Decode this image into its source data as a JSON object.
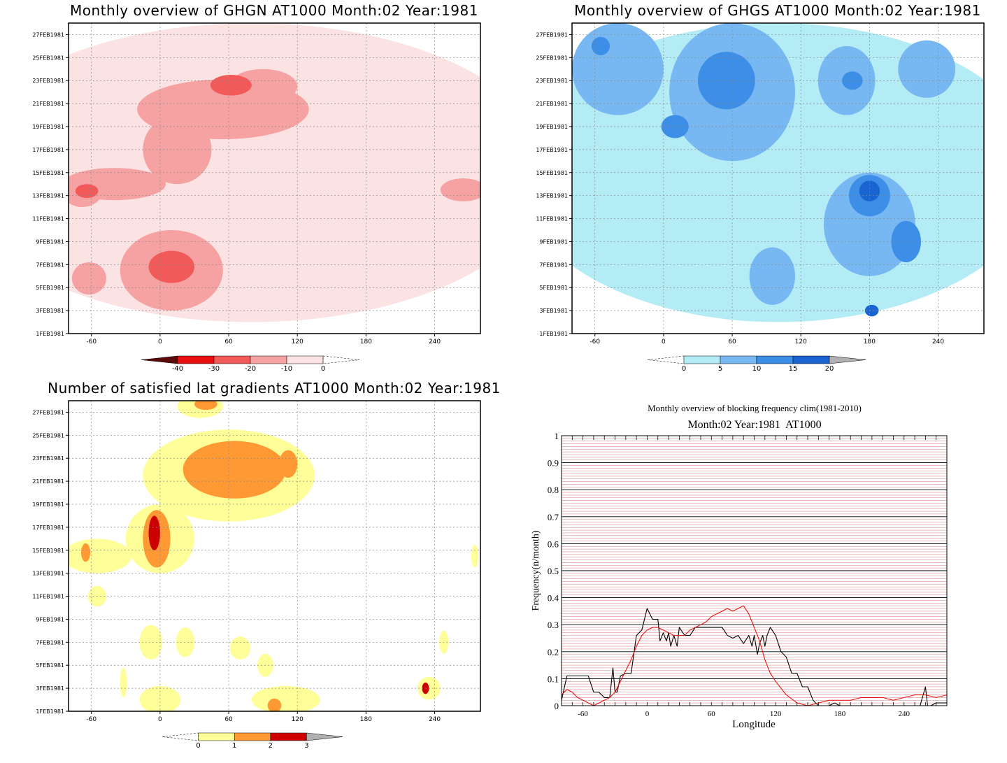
{
  "chart_data": [
    {
      "type": "heatmap",
      "title": "Monthly overview of GHGN AT1000 Month:02 Year:1981",
      "x_ticks": [
        -60,
        0,
        60,
        120,
        180,
        240
      ],
      "xlim": [
        -80,
        280
      ],
      "y_ticks": [
        "1FEB1981",
        "3FEB1981",
        "5FEB1981",
        "7FEB1981",
        "9FEB1981",
        "11FEB1981",
        "13FEB1981",
        "15FEB1981",
        "17FEB1981",
        "19FEB1981",
        "21FEB1981",
        "23FEB1981",
        "25FEB1981",
        "27FEB1981"
      ],
      "ylim": [
        1,
        28
      ],
      "colorbar": {
        "labels": [
          "-40",
          "-30",
          "-20",
          "-10",
          "0"
        ],
        "colors": [
          "#5a0a0a",
          "#e81010",
          "#f25a5a",
          "#f6a2a2",
          "#fbe3e3"
        ]
      },
      "blobs": [
        {
          "level": 1,
          "x": 80,
          "y": 15,
          "rx": 260,
          "ry": 13
        },
        {
          "level": 2,
          "x": 55,
          "y": 20.5,
          "rx": 75,
          "ry": 2.6
        },
        {
          "level": 2,
          "x": 15,
          "y": 17,
          "rx": 30,
          "ry": 3
        },
        {
          "level": 2,
          "x": -40,
          "y": 14,
          "rx": 45,
          "ry": 1.4
        },
        {
          "level": 2,
          "x": 90,
          "y": 22.5,
          "rx": 30,
          "ry": 1.5
        },
        {
          "level": 2,
          "x": 10,
          "y": 6.5,
          "rx": 45,
          "ry": 3.5
        },
        {
          "level": 2,
          "x": -62,
          "y": 5.8,
          "rx": 15,
          "ry": 1.4
        },
        {
          "level": 2,
          "x": 265,
          "y": 13.5,
          "rx": 20,
          "ry": 1
        },
        {
          "level": 2,
          "x": -68,
          "y": 13.5,
          "rx": 18,
          "ry": 1.5
        },
        {
          "level": 3,
          "x": 10,
          "y": 6.8,
          "rx": 20,
          "ry": 1.4
        },
        {
          "level": 3,
          "x": 62,
          "y": 22.6,
          "rx": 18,
          "ry": 0.9
        },
        {
          "level": 3,
          "x": -64,
          "y": 13.4,
          "rx": 10,
          "ry": 0.6
        }
      ]
    },
    {
      "type": "heatmap",
      "title": "Monthly overview of GHGS AT1000 Month:02 Year:1981",
      "x_ticks": [
        -60,
        0,
        60,
        120,
        180,
        240
      ],
      "xlim": [
        -80,
        280
      ],
      "y_ticks": [
        "1FEB1981",
        "3FEB1981",
        "5FEB1981",
        "7FEB1981",
        "9FEB1981",
        "11FEB1981",
        "13FEB1981",
        "15FEB1981",
        "17FEB1981",
        "19FEB1981",
        "21FEB1981",
        "23FEB1981",
        "25FEB1981",
        "27FEB1981"
      ],
      "ylim": [
        1,
        28
      ],
      "colorbar": {
        "labels": [
          "0",
          "5",
          "10",
          "15",
          "20"
        ],
        "colors": [
          "#b4ecf6",
          "#78b8f2",
          "#3c8ee6",
          "#1a64d0",
          "#b0b0b0"
        ]
      },
      "blobs": [
        {
          "level": 1,
          "x": 100,
          "y": 15,
          "rx": 230,
          "ry": 13
        },
        {
          "level": 2,
          "x": 60,
          "y": 22,
          "rx": 55,
          "ry": 6
        },
        {
          "level": 2,
          "x": -40,
          "y": 24,
          "rx": 40,
          "ry": 4
        },
        {
          "level": 2,
          "x": 180,
          "y": 10.5,
          "rx": 40,
          "ry": 4.5
        },
        {
          "level": 2,
          "x": 160,
          "y": 23,
          "rx": 25,
          "ry": 3
        },
        {
          "level": 2,
          "x": 230,
          "y": 24,
          "rx": 25,
          "ry": 2.5
        },
        {
          "level": 2,
          "x": 95,
          "y": 6,
          "rx": 20,
          "ry": 2.5
        },
        {
          "level": 3,
          "x": 55,
          "y": 23,
          "rx": 25,
          "ry": 2.5
        },
        {
          "level": 3,
          "x": 180,
          "y": 13,
          "rx": 18,
          "ry": 1.8
        },
        {
          "level": 3,
          "x": 212,
          "y": 9,
          "rx": 13,
          "ry": 1.8
        },
        {
          "level": 3,
          "x": 10,
          "y": 19,
          "rx": 12,
          "ry": 1
        },
        {
          "level": 3,
          "x": -55,
          "y": 26,
          "rx": 8,
          "ry": 0.8
        },
        {
          "level": 3,
          "x": 165,
          "y": 23,
          "rx": 9,
          "ry": 0.8
        },
        {
          "level": 4,
          "x": 180,
          "y": 13.4,
          "rx": 9,
          "ry": 0.9
        },
        {
          "level": 4,
          "x": 182,
          "y": 3,
          "rx": 6,
          "ry": 0.5
        }
      ]
    },
    {
      "type": "heatmap",
      "title": "Number of satisfied lat gradients AT1000 Month:02 Year:1981",
      "x_ticks": [
        -60,
        0,
        60,
        120,
        180,
        240
      ],
      "xlim": [
        -80,
        280
      ],
      "y_ticks": [
        "1FEB1981",
        "3FEB1981",
        "5FEB1981",
        "7FEB1981",
        "9FEB1981",
        "11FEB1981",
        "13FEB1981",
        "15FEB1981",
        "17FEB1981",
        "19FEB1981",
        "21FEB1981",
        "23FEB1981",
        "25FEB1981",
        "27FEB1981"
      ],
      "ylim": [
        1,
        28
      ],
      "colorbar": {
        "labels": [
          "0",
          "1",
          "2",
          "3"
        ],
        "colors": [
          "#ffff99",
          "#ff9933",
          "#cc0000",
          "#b0b0b0"
        ]
      },
      "blobs": [
        {
          "level": 1,
          "x": 60,
          "y": 21.5,
          "rx": 75,
          "ry": 4
        },
        {
          "level": 1,
          "x": 0,
          "y": 16,
          "rx": 30,
          "ry": 3
        },
        {
          "level": 1,
          "x": -55,
          "y": 14.5,
          "rx": 30,
          "ry": 1.5
        },
        {
          "level": 1,
          "x": 35,
          "y": 27.5,
          "rx": 20,
          "ry": 1
        },
        {
          "level": 1,
          "x": -55,
          "y": 11,
          "rx": 8,
          "ry": 0.9
        },
        {
          "level": 1,
          "x": -8,
          "y": 7,
          "rx": 10,
          "ry": 1.5
        },
        {
          "level": 1,
          "x": 22,
          "y": 7,
          "rx": 8,
          "ry": 1.3
        },
        {
          "level": 1,
          "x": 70,
          "y": 6.5,
          "rx": 9,
          "ry": 1
        },
        {
          "level": 1,
          "x": 92,
          "y": 5,
          "rx": 7,
          "ry": 1
        },
        {
          "level": 1,
          "x": 0,
          "y": 2,
          "rx": 18,
          "ry": 1.2
        },
        {
          "level": 1,
          "x": 110,
          "y": 2,
          "rx": 30,
          "ry": 1.2
        },
        {
          "level": 1,
          "x": 235,
          "y": 3,
          "rx": 10,
          "ry": 1
        },
        {
          "level": 1,
          "x": 248,
          "y": 7,
          "rx": 4,
          "ry": 1
        },
        {
          "level": 1,
          "x": -32,
          "y": 3.5,
          "rx": 3,
          "ry": 1.3
        },
        {
          "level": 1,
          "x": 275,
          "y": 14.5,
          "rx": 3,
          "ry": 1
        },
        {
          "level": 2,
          "x": 65,
          "y": 22,
          "rx": 45,
          "ry": 2.5
        },
        {
          "level": 2,
          "x": -3,
          "y": 16,
          "rx": 12,
          "ry": 2.5
        },
        {
          "level": 2,
          "x": 40,
          "y": 27.7,
          "rx": 10,
          "ry": 0.5
        },
        {
          "level": 2,
          "x": -65,
          "y": 14.8,
          "rx": 4,
          "ry": 0.8
        },
        {
          "level": 2,
          "x": 100,
          "y": 1.5,
          "rx": 6,
          "ry": 0.6
        },
        {
          "level": 2,
          "x": 112,
          "y": 22.5,
          "rx": 8,
          "ry": 1.2
        },
        {
          "level": 3,
          "x": -5,
          "y": 16.5,
          "rx": 5,
          "ry": 1.5
        },
        {
          "level": 3,
          "x": 232,
          "y": 3,
          "rx": 3,
          "ry": 0.5
        }
      ]
    },
    {
      "type": "line",
      "title": "Monthly overview of blocking frequency clim(1981-2010)",
      "subtitle": "Month:02 Year:1981  AT1000",
      "xlabel": "Longitude",
      "ylabel": "Frequency(n/month)",
      "xlim": [
        -80,
        280
      ],
      "ylim": [
        0,
        1
      ],
      "x_ticks": [
        -60,
        0,
        60,
        120,
        180,
        240
      ],
      "y_ticks": [
        "0",
        "0.1",
        "0.2",
        "0.3",
        "0.4",
        "0.5",
        "0.6",
        "0.7",
        "0.8",
        "0.9",
        "1"
      ],
      "grid": true,
      "series": [
        {
          "color": "#000000",
          "x": [
            -80,
            -75,
            -65,
            -55,
            -50,
            -45,
            -40,
            -35,
            -32,
            -30,
            -28,
            -25,
            -20,
            -15,
            -10,
            -5,
            0,
            5,
            10,
            12,
            15,
            18,
            20,
            22,
            25,
            28,
            30,
            35,
            40,
            45,
            50,
            55,
            60,
            65,
            70,
            75,
            80,
            85,
            90,
            95,
            98,
            100,
            103,
            105,
            108,
            110,
            112,
            115,
            120,
            125,
            130,
            135,
            140,
            145,
            150,
            155,
            160,
            165,
            170,
            175,
            180,
            200,
            220,
            240,
            250,
            255,
            260,
            262,
            265,
            270,
            280
          ],
          "y": [
            0.02,
            0.11,
            0.11,
            0.11,
            0.05,
            0.05,
            0.03,
            0.03,
            0.14,
            0.05,
            0.05,
            0.11,
            0.12,
            0.12,
            0.26,
            0.28,
            0.36,
            0.32,
            0.32,
            0.24,
            0.27,
            0.24,
            0.27,
            0.22,
            0.26,
            0.22,
            0.29,
            0.26,
            0.26,
            0.29,
            0.29,
            0.29,
            0.29,
            0.29,
            0.29,
            0.26,
            0.25,
            0.26,
            0.23,
            0.26,
            0.22,
            0.26,
            0.19,
            0.23,
            0.26,
            0.22,
            0.26,
            0.29,
            0.26,
            0.2,
            0.18,
            0.12,
            0.12,
            0.07,
            0.07,
            0.02,
            0.0,
            0.0,
            0.0,
            0.01,
            0.0,
            0.0,
            0.0,
            0.0,
            0.0,
            0.0,
            0.07,
            0.0,
            0.0,
            0.01,
            0.01
          ]
        },
        {
          "color": "#e81414",
          "x": [
            -80,
            -75,
            -70,
            -65,
            -60,
            -55,
            -50,
            -45,
            -40,
            -35,
            -30,
            -25,
            -20,
            -15,
            -10,
            -5,
            0,
            5,
            10,
            15,
            20,
            25,
            30,
            35,
            40,
            45,
            50,
            55,
            60,
            65,
            70,
            75,
            80,
            85,
            90,
            95,
            100,
            105,
            110,
            115,
            120,
            130,
            140,
            150,
            160,
            170,
            180,
            190,
            200,
            210,
            220,
            230,
            240,
            250,
            260,
            270,
            280
          ],
          "y": [
            0.04,
            0.06,
            0.05,
            0.03,
            0.02,
            0.01,
            0.0,
            0.01,
            0.02,
            0.03,
            0.05,
            0.09,
            0.13,
            0.17,
            0.22,
            0.26,
            0.28,
            0.29,
            0.29,
            0.28,
            0.27,
            0.26,
            0.26,
            0.26,
            0.28,
            0.29,
            0.3,
            0.31,
            0.33,
            0.34,
            0.35,
            0.36,
            0.35,
            0.36,
            0.37,
            0.34,
            0.29,
            0.24,
            0.17,
            0.12,
            0.09,
            0.04,
            0.01,
            0.0,
            0.01,
            0.02,
            0.02,
            0.02,
            0.03,
            0.03,
            0.03,
            0.02,
            0.03,
            0.04,
            0.04,
            0.03,
            0.04
          ]
        }
      ]
    }
  ]
}
